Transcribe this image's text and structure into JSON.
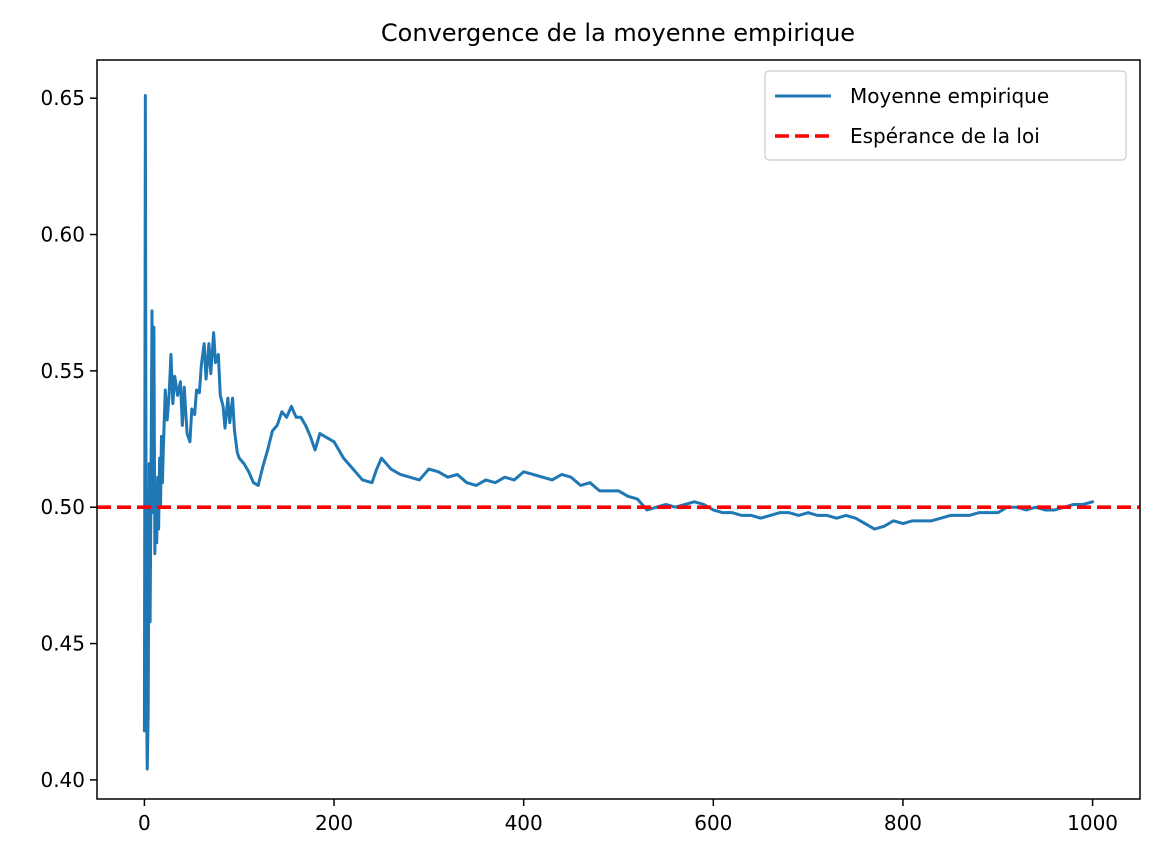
{
  "chart_data": {
    "type": "line",
    "title": "Convergence de la moyenne empirique",
    "xlabel": "",
    "ylabel": "",
    "xlim": [
      -50,
      1050
    ],
    "ylim": [
      0.393,
      0.664
    ],
    "x_ticks": [
      0,
      200,
      400,
      600,
      800,
      1000
    ],
    "x_tick_labels": [
      "0",
      "200",
      "400",
      "600",
      "800",
      "1000"
    ],
    "y_ticks": [
      0.4,
      0.45,
      0.5,
      0.55,
      0.6,
      0.65
    ],
    "y_tick_labels": [
      "0.40",
      "0.45",
      "0.50",
      "0.55",
      "0.60",
      "0.65"
    ],
    "grid": false,
    "legend_position": "top-right",
    "colors": {
      "series": "#1f77b4",
      "reference": "#ff0000"
    },
    "series": [
      {
        "name": "Moyenne empirique",
        "x": [
          0,
          1,
          2,
          3,
          4,
          5,
          6,
          7,
          8,
          9,
          10,
          11,
          12,
          13,
          14,
          15,
          16,
          17,
          18,
          19,
          20,
          22,
          24,
          26,
          28,
          30,
          32,
          35,
          38,
          40,
          42,
          45,
          48,
          50,
          53,
          55,
          58,
          60,
          63,
          65,
          68,
          70,
          73,
          75,
          78,
          80,
          83,
          85,
          88,
          90,
          93,
          95,
          98,
          100,
          105,
          110,
          115,
          120,
          125,
          130,
          135,
          140,
          145,
          150,
          155,
          160,
          165,
          170,
          175,
          180,
          185,
          190,
          195,
          200,
          210,
          220,
          230,
          240,
          245,
          250,
          260,
          270,
          280,
          290,
          300,
          310,
          320,
          330,
          340,
          350,
          360,
          370,
          380,
          390,
          400,
          410,
          420,
          430,
          440,
          450,
          460,
          470,
          480,
          490,
          500,
          510,
          520,
          530,
          540,
          550,
          560,
          570,
          580,
          590,
          600,
          610,
          620,
          630,
          640,
          650,
          660,
          670,
          680,
          690,
          700,
          710,
          720,
          730,
          740,
          750,
          760,
          770,
          780,
          790,
          800,
          810,
          820,
          830,
          840,
          850,
          860,
          870,
          880,
          890,
          900,
          910,
          920,
          930,
          940,
          950,
          960,
          970,
          980,
          990,
          1000
        ],
        "y": [
          0.418,
          0.651,
          0.434,
          0.404,
          0.425,
          0.516,
          0.458,
          0.512,
          0.572,
          0.498,
          0.566,
          0.483,
          0.505,
          0.487,
          0.511,
          0.492,
          0.518,
          0.5,
          0.526,
          0.509,
          0.522,
          0.543,
          0.532,
          0.541,
          0.556,
          0.538,
          0.548,
          0.541,
          0.546,
          0.53,
          0.544,
          0.527,
          0.524,
          0.536,
          0.534,
          0.543,
          0.542,
          0.552,
          0.56,
          0.547,
          0.56,
          0.549,
          0.564,
          0.553,
          0.556,
          0.541,
          0.537,
          0.529,
          0.54,
          0.531,
          0.54,
          0.528,
          0.52,
          0.518,
          0.516,
          0.513,
          0.509,
          0.508,
          0.515,
          0.521,
          0.528,
          0.53,
          0.535,
          0.533,
          0.537,
          0.533,
          0.533,
          0.53,
          0.526,
          0.521,
          0.527,
          0.526,
          0.525,
          0.524,
          0.518,
          0.514,
          0.51,
          0.509,
          0.514,
          0.518,
          0.514,
          0.512,
          0.511,
          0.51,
          0.514,
          0.513,
          0.511,
          0.512,
          0.509,
          0.508,
          0.51,
          0.509,
          0.511,
          0.51,
          0.513,
          0.512,
          0.511,
          0.51,
          0.512,
          0.511,
          0.508,
          0.509,
          0.506,
          0.506,
          0.506,
          0.504,
          0.503,
          0.499,
          0.5,
          0.501,
          0.5,
          0.501,
          0.502,
          0.501,
          0.499,
          0.498,
          0.498,
          0.497,
          0.497,
          0.496,
          0.497,
          0.498,
          0.498,
          0.497,
          0.498,
          0.497,
          0.497,
          0.496,
          0.497,
          0.496,
          0.494,
          0.492,
          0.493,
          0.495,
          0.494,
          0.495,
          0.495,
          0.495,
          0.496,
          0.497,
          0.497,
          0.497,
          0.498,
          0.498,
          0.498,
          0.5,
          0.5,
          0.499,
          0.5,
          0.499,
          0.499,
          0.5,
          0.501,
          0.501,
          0.502
        ]
      },
      {
        "name": "Espérance de la loi",
        "line_value": 0.5,
        "style": "dashed"
      }
    ]
  }
}
